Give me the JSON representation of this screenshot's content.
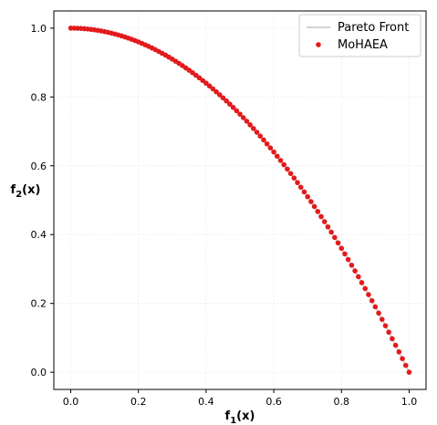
{
  "chart_data": {
    "type": "scatter",
    "xlabel": "f",
    "xlabel_sub": "1",
    "xlabel_suffix": "(x)",
    "ylabel": "f",
    "ylabel_sub": "2",
    "ylabel_suffix": "(x)",
    "xlim": [
      -0.05,
      1.05
    ],
    "ylim": [
      -0.05,
      1.05
    ],
    "x_ticks": [
      "0.0",
      "0.2",
      "0.4",
      "0.6",
      "0.8",
      "1.0"
    ],
    "y_ticks": [
      "0.0",
      "0.2",
      "0.4",
      "0.6",
      "0.8",
      "1.0"
    ],
    "grid": true,
    "legend_position": "top-right",
    "series": [
      {
        "name": "Pareto Front",
        "type": "line",
        "color": "#d3d3d3",
        "function": "y = 1 - x^2",
        "x_range": [
          0,
          1
        ]
      },
      {
        "name": "MoHAEA",
        "type": "scatter",
        "color": "#e31a1c",
        "x": [
          0.0,
          0.01,
          0.02,
          0.03,
          0.04,
          0.05,
          0.06,
          0.07,
          0.08,
          0.09,
          0.1,
          0.11,
          0.12,
          0.13,
          0.14,
          0.15,
          0.16,
          0.17,
          0.18,
          0.19,
          0.2,
          0.21,
          0.22,
          0.23,
          0.24,
          0.25,
          0.26,
          0.27,
          0.28,
          0.29,
          0.3,
          0.31,
          0.32,
          0.33,
          0.34,
          0.35,
          0.36,
          0.37,
          0.38,
          0.39,
          0.4,
          0.41,
          0.42,
          0.43,
          0.44,
          0.45,
          0.46,
          0.47,
          0.48,
          0.49,
          0.5,
          0.51,
          0.52,
          0.53,
          0.54,
          0.55,
          0.56,
          0.57,
          0.58,
          0.59,
          0.6,
          0.61,
          0.62,
          0.63,
          0.64,
          0.65,
          0.66,
          0.67,
          0.68,
          0.69,
          0.7,
          0.71,
          0.72,
          0.73,
          0.74,
          0.75,
          0.76,
          0.77,
          0.78,
          0.79,
          0.8,
          0.81,
          0.82,
          0.83,
          0.84,
          0.85,
          0.86,
          0.87,
          0.88,
          0.89,
          0.9,
          0.91,
          0.92,
          0.93,
          0.94,
          0.95,
          0.96,
          0.97,
          0.98,
          0.99,
          1.0
        ],
        "y": [
          1.0,
          0.9999,
          0.9996,
          0.9991,
          0.9984,
          0.9975,
          0.9964,
          0.9951,
          0.9936,
          0.9919,
          0.99,
          0.9879,
          0.9856,
          0.9831,
          0.9804,
          0.9775,
          0.9744,
          0.9711,
          0.9676,
          0.9639,
          0.96,
          0.9559,
          0.9516,
          0.9471,
          0.9424,
          0.9375,
          0.9324,
          0.9271,
          0.9216,
          0.9159,
          0.91,
          0.9039,
          0.8976,
          0.8911,
          0.8844,
          0.8775,
          0.8704,
          0.8631,
          0.8556,
          0.8479,
          0.84,
          0.8319,
          0.8236,
          0.8151,
          0.8064,
          0.7975,
          0.7884,
          0.7791,
          0.7696,
          0.7599,
          0.75,
          0.7399,
          0.7296,
          0.7191,
          0.7084,
          0.6975,
          0.6864,
          0.6751,
          0.6636,
          0.6519,
          0.64,
          0.6279,
          0.6156,
          0.6031,
          0.5904,
          0.5775,
          0.5644,
          0.5511,
          0.5376,
          0.5239,
          0.51,
          0.4959,
          0.4816,
          0.4671,
          0.4524,
          0.4375,
          0.4224,
          0.4071,
          0.3916,
          0.3759,
          0.36,
          0.3439,
          0.3276,
          0.3111,
          0.2944,
          0.2775,
          0.2604,
          0.2431,
          0.2256,
          0.2079,
          0.19,
          0.1719,
          0.1536,
          0.1351,
          0.1164,
          0.0975,
          0.0784,
          0.0591,
          0.0396,
          0.0199,
          0.0
        ]
      }
    ]
  }
}
